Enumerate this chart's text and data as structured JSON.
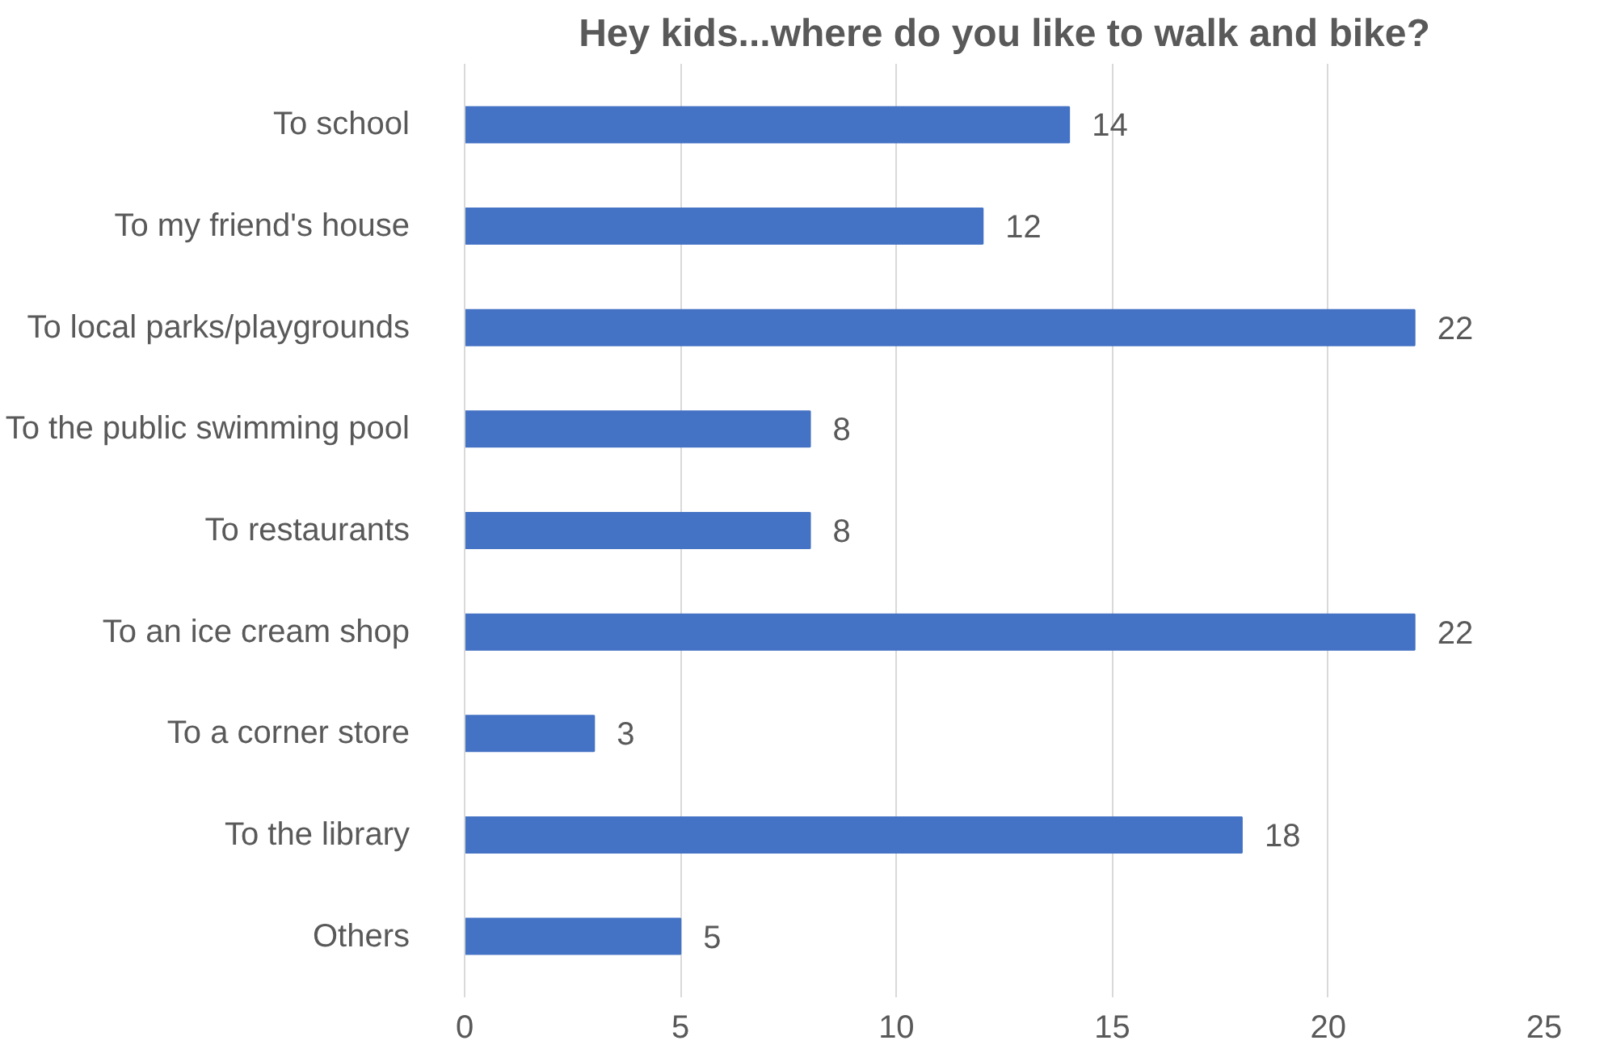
{
  "chart_data": {
    "type": "bar",
    "orientation": "horizontal",
    "title": "Hey kids...where do you like to walk and bike?",
    "categories": [
      "To school",
      "To my friend's house",
      "To local parks/playgrounds",
      "To the public swimming pool",
      "To restaurants",
      "To an ice cream shop",
      "To a corner store",
      "To the library",
      "Others"
    ],
    "values": [
      14,
      12,
      22,
      8,
      8,
      22,
      3,
      18,
      5
    ],
    "color": "#4472c4",
    "xlim": [
      0,
      25
    ],
    "xticks": [
      0,
      5,
      10,
      15,
      20,
      25
    ],
    "grid": "x",
    "data_labels": true
  }
}
